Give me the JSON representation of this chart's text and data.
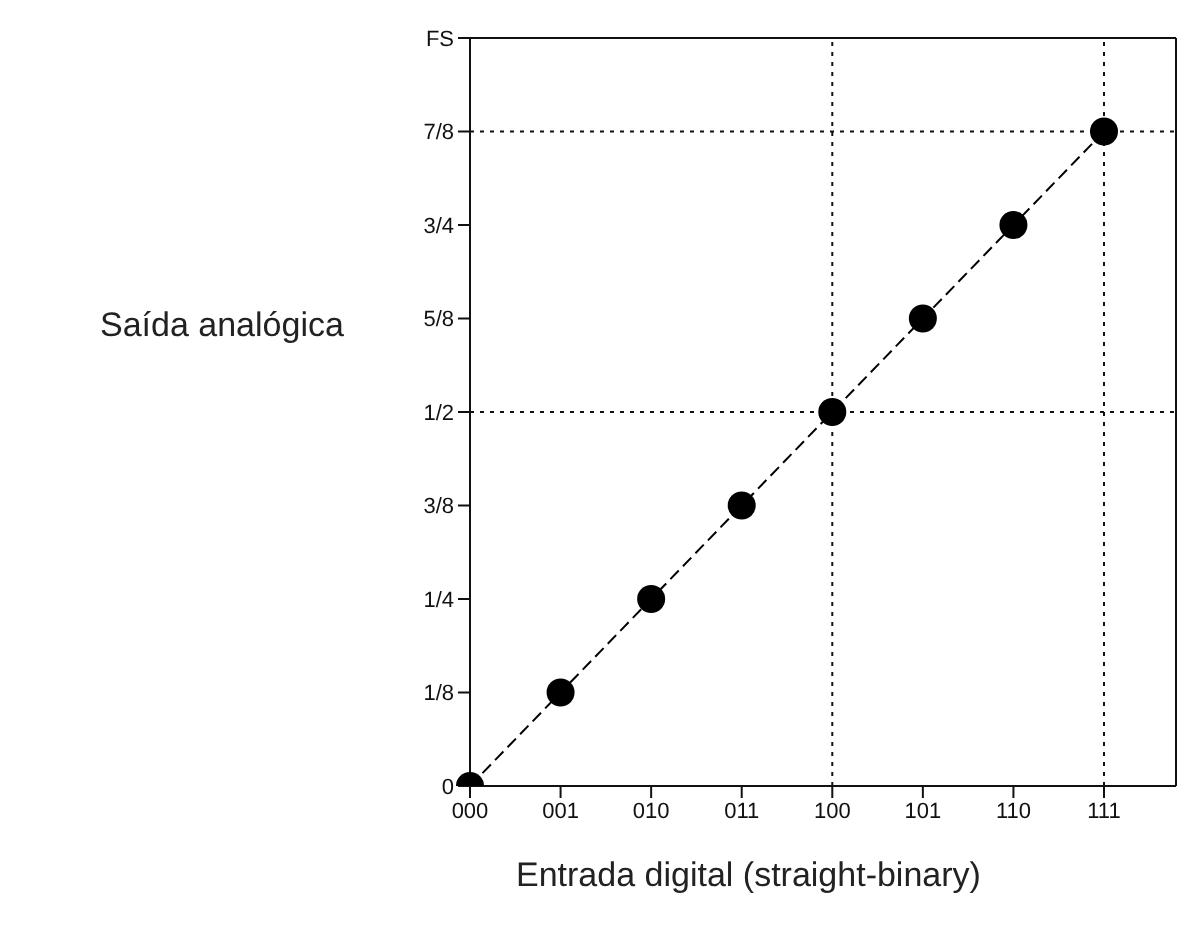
{
  "chart_data": {
    "type": "line",
    "xlabel": "Entrada digital (straight-binary)",
    "ylabel": "Saída analógica",
    "categories": [
      "000",
      "001",
      "010",
      "011",
      "100",
      "101",
      "110",
      "111"
    ],
    "series": [
      {
        "color": "#000000",
        "values": [
          0,
          0.125,
          0.25,
          0.375,
          0.5,
          0.625,
          0.75,
          0.875
        ]
      }
    ],
    "ylim": [
      0,
      1
    ],
    "yticks": [
      0,
      {
        "value": 0.125,
        "label": "1/8"
      },
      {
        "value": 0.25,
        "label": "1/4"
      },
      {
        "value": 0.375,
        "label": "3/8"
      },
      {
        "value": 0.5,
        "label": "1/2"
      },
      {
        "value": 0.625,
        "label": "5/8"
      },
      {
        "value": 0.75,
        "label": "3/4"
      },
      {
        "value": 0.875,
        "label": "7/8"
      },
      {
        "value": 1,
        "label": "FS"
      }
    ],
    "ref_lines": [
      {
        "axis": "y",
        "value": 0.5,
        "line_style": "dotted"
      },
      {
        "axis": "y",
        "value": 0.875,
        "line_style": "dotted"
      },
      {
        "axis": "x",
        "value": "100",
        "line_style": "dotted"
      },
      {
        "axis": "x",
        "value": "111",
        "line_style": "dotted"
      }
    ],
    "marker": "circle",
    "line_style": "dashed"
  }
}
